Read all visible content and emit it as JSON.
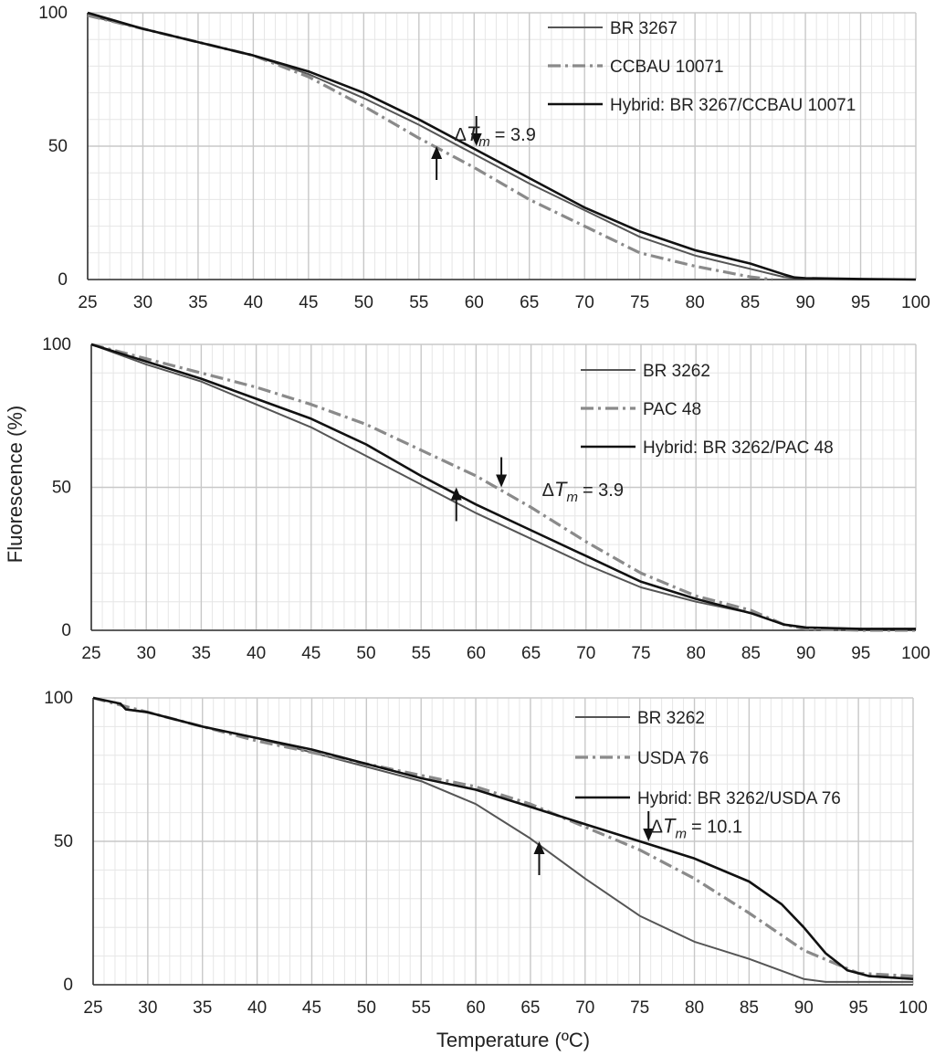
{
  "figure": {
    "ylabel": "Fluorescence (%)",
    "xlabel": "Temperature (ºC)"
  },
  "colors": {
    "parent": "#555555",
    "partner": "#8a8a8a",
    "hybrid": "#111111",
    "grid_major": "#c8c8c8",
    "grid_minor": "#e6e6e6",
    "axis": "#333333"
  },
  "chart_data": [
    {
      "type": "line",
      "xlim": [
        25,
        100
      ],
      "ylim": [
        0,
        100
      ],
      "xticks": [
        25,
        30,
        35,
        40,
        45,
        50,
        55,
        60,
        65,
        70,
        75,
        80,
        85,
        90,
        95,
        100
      ],
      "yticks": [
        0,
        50,
        100
      ],
      "grid": true,
      "legend_position": "top-right",
      "annotation": {
        "delta": "Δ",
        "t": "T",
        "sub": "m",
        "value": "= 3.9",
        "t_x": 58.2,
        "t_y": 52
      },
      "arrows": [
        {
          "direction": "down",
          "x": 60.2,
          "y": 50
        },
        {
          "direction": "up",
          "x": 56.6,
          "y": 50
        }
      ],
      "series": [
        {
          "name": "BR 3267",
          "style": "parent",
          "x": [
            25,
            30,
            35,
            40,
            45,
            50,
            55,
            60,
            65,
            70,
            75,
            80,
            85,
            88,
            89,
            90,
            95,
            100
          ],
          "y": [
            99,
            94,
            89,
            84,
            77,
            68,
            58,
            47,
            36,
            26,
            16,
            9,
            4,
            1,
            0.5,
            0.3,
            0,
            0
          ]
        },
        {
          "name": "CCBAU 10071",
          "style": "partner",
          "x": [
            25,
            30,
            35,
            40,
            45,
            50,
            55,
            60,
            65,
            70,
            75,
            80,
            85,
            87
          ],
          "y": [
            99,
            94,
            89,
            84,
            76,
            65,
            53,
            42,
            30,
            20,
            10,
            5,
            1,
            0
          ]
        },
        {
          "name": "Hybrid: BR 3267/CCBAU 10071",
          "style": "hybrid",
          "x": [
            25,
            30,
            35,
            40,
            45,
            50,
            55,
            60,
            65,
            70,
            75,
            80,
            85,
            88,
            89,
            90,
            95,
            100
          ],
          "y": [
            100,
            94,
            89,
            84,
            78,
            70,
            60,
            49,
            38,
            27,
            18,
            11,
            6,
            2,
            0.8,
            0.5,
            0.2,
            0
          ]
        }
      ]
    },
    {
      "type": "line",
      "xlim": [
        25,
        100
      ],
      "ylim": [
        0,
        100
      ],
      "xticks": [
        25,
        30,
        35,
        40,
        45,
        50,
        55,
        60,
        65,
        70,
        75,
        80,
        85,
        90,
        95,
        100
      ],
      "yticks": [
        0,
        50,
        100
      ],
      "grid": true,
      "legend_position": "top-right",
      "annotation": {
        "delta": "Δ",
        "t": "T",
        "sub": "m",
        "value": "= 3.9",
        "t_x": 66,
        "t_y": 47
      },
      "arrows": [
        {
          "direction": "down",
          "x": 62.3,
          "y": 50
        },
        {
          "direction": "up",
          "x": 58.2,
          "y": 50
        }
      ],
      "series": [
        {
          "name": "BR 3262",
          "style": "parent",
          "x": [
            25,
            30,
            35,
            40,
            45,
            50,
            55,
            60,
            65,
            70,
            75,
            80,
            85,
            88,
            90,
            95,
            100
          ],
          "y": [
            100,
            93,
            87,
            79,
            71,
            61,
            51,
            41,
            32,
            23,
            15,
            10,
            6,
            2,
            1,
            0.5,
            0.5
          ]
        },
        {
          "name": "PAC 48",
          "style": "partner",
          "x": [
            25,
            30,
            35,
            40,
            45,
            50,
            55,
            60,
            65,
            70,
            75,
            80,
            85,
            88,
            90,
            95,
            100
          ],
          "y": [
            100,
            95,
            90,
            85,
            79,
            72,
            63,
            54,
            43,
            31,
            20,
            12,
            7,
            2,
            0.5,
            0,
            0
          ]
        },
        {
          "name": "Hybrid: BR 3262/PAC 48",
          "style": "hybrid",
          "x": [
            25,
            30,
            35,
            40,
            45,
            50,
            55,
            60,
            65,
            70,
            75,
            80,
            85,
            88,
            90,
            95,
            100
          ],
          "y": [
            100,
            94,
            88,
            81,
            74,
            65,
            54,
            44,
            35,
            26,
            17,
            11,
            6,
            2,
            1,
            0.5,
            0.5
          ]
        }
      ]
    },
    {
      "type": "line",
      "xlim": [
        25,
        100
      ],
      "ylim": [
        0,
        100
      ],
      "xticks": [
        25,
        30,
        35,
        40,
        45,
        50,
        55,
        60,
        65,
        70,
        75,
        80,
        85,
        90,
        95,
        100
      ],
      "yticks": [
        0,
        50,
        100
      ],
      "grid": true,
      "legend_position": "top-right",
      "annotation": {
        "delta": "Δ",
        "t": "T",
        "sub": "m",
        "value": "= 10.1",
        "t_x": 76,
        "t_y": 53
      },
      "arrows": [
        {
          "direction": "down",
          "x": 75.8,
          "y": 50
        },
        {
          "direction": "up",
          "x": 65.8,
          "y": 50
        }
      ],
      "series": [
        {
          "name": "BR 3262",
          "style": "parent",
          "x": [
            25,
            27.5,
            28,
            30,
            35,
            40,
            45,
            50,
            55,
            60,
            65,
            70,
            75,
            80,
            85,
            90,
            92,
            95,
            100
          ],
          "y": [
            100,
            98,
            96,
            95,
            90,
            86,
            81,
            76,
            71,
            63,
            51,
            37,
            24,
            15,
            9,
            2,
            1,
            1,
            1
          ]
        },
        {
          "name": "USDA 76",
          "style": "partner",
          "x": [
            25,
            30,
            35,
            40,
            45,
            50,
            55,
            60,
            65,
            70,
            75,
            80,
            85,
            90,
            95,
            100
          ],
          "y": [
            100,
            95,
            90,
            85,
            81,
            77,
            73,
            69,
            63,
            55,
            47,
            37,
            25,
            12,
            4,
            3
          ]
        },
        {
          "name": "Hybrid: BR 3262/USDA 76",
          "style": "hybrid",
          "x": [
            25,
            27.5,
            28,
            30,
            35,
            40,
            45,
            50,
            55,
            60,
            65,
            70,
            75,
            80,
            85,
            88,
            90,
            92,
            94,
            96,
            100
          ],
          "y": [
            100,
            98,
            96,
            95,
            90,
            86,
            82,
            77,
            72,
            68,
            62,
            56,
            50,
            44,
            36,
            28,
            20,
            11,
            5,
            3,
            2
          ]
        }
      ]
    }
  ]
}
